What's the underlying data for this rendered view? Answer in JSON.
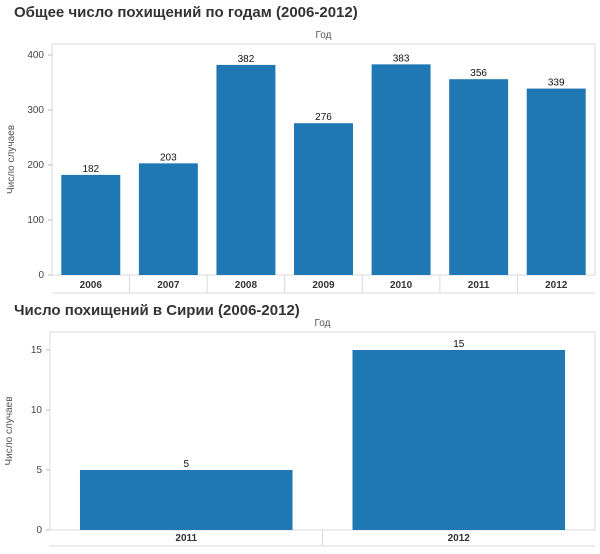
{
  "chart_data": [
    {
      "type": "bar",
      "title": "Общее число похищений по годам (2006-2012)",
      "xlabel": "Год",
      "ylabel": "Число случаев",
      "categories": [
        "2006",
        "2007",
        "2008",
        "2009",
        "2010",
        "2011",
        "2012"
      ],
      "values": [
        182,
        203,
        382,
        276,
        383,
        356,
        339
      ],
      "ylim": [
        0,
        420
      ],
      "yticks": [
        0,
        100,
        200,
        300,
        400
      ],
      "grid": false,
      "color": "#1f77b4"
    },
    {
      "type": "bar",
      "title": "Число похищений в Сирии (2006-2012)",
      "xlabel": "Год",
      "ylabel": "Число случаев",
      "categories": [
        "2011",
        "2012"
      ],
      "values": [
        5,
        15
      ],
      "ylim": [
        0,
        16.5
      ],
      "yticks": [
        0,
        5,
        10,
        15
      ],
      "grid": false,
      "color": "#1f77b4"
    }
  ]
}
